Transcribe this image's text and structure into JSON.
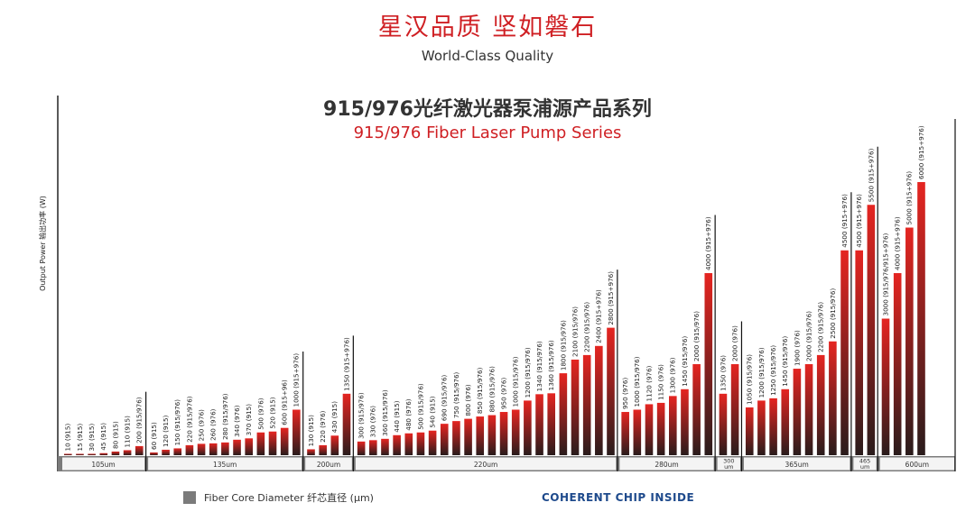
{
  "header": {
    "headline": "星汉品质 坚如磐石",
    "subheadline": "World-Class Quality"
  },
  "legend": {
    "label": "Fiber Core Diameter  纤芯直径 (μm)",
    "swatch_color": "#7b7b7b"
  },
  "brand": {
    "text": "COHERENT CHIP INSIDE",
    "color": "#1e4a8c"
  },
  "colors": {
    "bar_top": "#e52521",
    "bar_bottom": "#2a1c1c",
    "accent": "#cf1f23",
    "group_band": "#7b7b7b"
  },
  "chart_data": {
    "type": "bar",
    "title": "915/976光纤激光器泵浦源产品系列",
    "subtitle": "915/976 Fiber Laser Pump Series",
    "ylabel": "Output Power  输出功率 (W)",
    "xlabel": "Fiber Core Diameter  纤芯直径 (μm)",
    "ylim": [
      0,
      6000
    ],
    "groups": [
      {
        "label": "105um",
        "bars": [
          {
            "value": 10,
            "label": "10 (915)"
          },
          {
            "value": 15,
            "label": "15 (915)"
          },
          {
            "value": 30,
            "label": "30 (915)"
          },
          {
            "value": 45,
            "label": "45 (915)"
          },
          {
            "value": 80,
            "label": "80 (915)"
          },
          {
            "value": 110,
            "label": "110 (915)"
          },
          {
            "value": 200,
            "label": "200 (915/976)"
          }
        ]
      },
      {
        "label": "135um",
        "bars": [
          {
            "value": 60,
            "label": "60 (915)"
          },
          {
            "value": 120,
            "label": "120 (915)"
          },
          {
            "value": 150,
            "label": "150 (915/976)"
          },
          {
            "value": 220,
            "label": "220 (915/976)"
          },
          {
            "value": 250,
            "label": "250 (976)"
          },
          {
            "value": 260,
            "label": "260 (976)"
          },
          {
            "value": 280,
            "label": "280 (915/976)"
          },
          {
            "value": 340,
            "label": "340 (976)"
          },
          {
            "value": 370,
            "label": "370 (915)"
          },
          {
            "value": 500,
            "label": "500 (976)"
          },
          {
            "value": 520,
            "label": "520 (915)"
          },
          {
            "value": 600,
            "label": "600 (915+96)"
          },
          {
            "value": 1000,
            "label": "1000 (915+976)"
          }
        ]
      },
      {
        "label": "200um",
        "bars": [
          {
            "value": 130,
            "label": "130 (915)"
          },
          {
            "value": 220,
            "label": "220 (976)"
          },
          {
            "value": 430,
            "label": "430 (915)"
          },
          {
            "value": 1350,
            "label": "1350 (915+976)"
          }
        ]
      },
      {
        "label": "220um",
        "bars": [
          {
            "value": 300,
            "label": "300 (915/976)"
          },
          {
            "value": 330,
            "label": "330 (976)"
          },
          {
            "value": 360,
            "label": "360 (915/976)"
          },
          {
            "value": 440,
            "label": "440 (915)"
          },
          {
            "value": 480,
            "label": "480 (976)"
          },
          {
            "value": 500,
            "label": "500 (915/976)"
          },
          {
            "value": 540,
            "label": "540 (915)"
          },
          {
            "value": 690,
            "label": "690 (915/976)"
          },
          {
            "value": 750,
            "label": "750 (915/976)"
          },
          {
            "value": 800,
            "label": "800 (976)"
          },
          {
            "value": 850,
            "label": "850 (915/976)"
          },
          {
            "value": 880,
            "label": "880 (915/976)"
          },
          {
            "value": 950,
            "label": "950 (976)"
          },
          {
            "value": 1000,
            "label": "1000 (915/976)"
          },
          {
            "value": 1200,
            "label": "1200 (915/976)"
          },
          {
            "value": 1340,
            "label": "1340 (915/976)"
          },
          {
            "value": 1360,
            "label": "1360 (915/976)"
          },
          {
            "value": 1800,
            "label": "1800 (915/976)"
          },
          {
            "value": 2100,
            "label": "2100 (915/976)"
          },
          {
            "value": 2200,
            "label": "2200 (915/976)"
          },
          {
            "value": 2400,
            "label": "2400 (915+976)"
          },
          {
            "value": 2800,
            "label": "2800 (915+976)"
          }
        ]
      },
      {
        "label": "280um",
        "bars": [
          {
            "value": 950,
            "label": "950 (976)"
          },
          {
            "value": 1000,
            "label": "1000 (915/976)"
          },
          {
            "value": 1120,
            "label": "1120 (976)"
          },
          {
            "value": 1150,
            "label": "1150 (976)"
          },
          {
            "value": 1300,
            "label": "1300 (976)"
          },
          {
            "value": 1450,
            "label": "1450 (915/976)"
          },
          {
            "value": 2000,
            "label": "2000 (915/976)"
          },
          {
            "value": 4000,
            "label": "4000 (915+976)"
          }
        ]
      },
      {
        "label": "300\num",
        "bars": [
          {
            "value": 1350,
            "label": "1350 (976)"
          },
          {
            "value": 2000,
            "label": "2000 (976)"
          }
        ]
      },
      {
        "label": "365um",
        "bars": [
          {
            "value": 1050,
            "label": "1050 (915/976)"
          },
          {
            "value": 1200,
            "label": "1200 (915/976)"
          },
          {
            "value": 1250,
            "label": "1250 (915/976)"
          },
          {
            "value": 1450,
            "label": "1450 (915/976)"
          },
          {
            "value": 1900,
            "label": "1900 (976)"
          },
          {
            "value": 2000,
            "label": "2000 (915/976)"
          },
          {
            "value": 2200,
            "label": "2200 (915/976)"
          },
          {
            "value": 2500,
            "label": "2500 (915/976)"
          },
          {
            "value": 4500,
            "label": "4500 (915+976)"
          }
        ]
      },
      {
        "label": "465\num",
        "bars": [
          {
            "value": 4500,
            "label": "4500 (915+976)"
          },
          {
            "value": 5500,
            "label": "5500 (915+976)"
          }
        ]
      },
      {
        "label": "600um",
        "bars": [
          {
            "value": 3000,
            "label": "3000 (915/976/915+976)"
          },
          {
            "value": 4000,
            "label": "4000 (915+976)"
          },
          {
            "value": 5000,
            "label": "5000 (915+976)"
          },
          {
            "value": 6000,
            "label": "6000 (915+976)"
          }
        ]
      }
    ]
  }
}
